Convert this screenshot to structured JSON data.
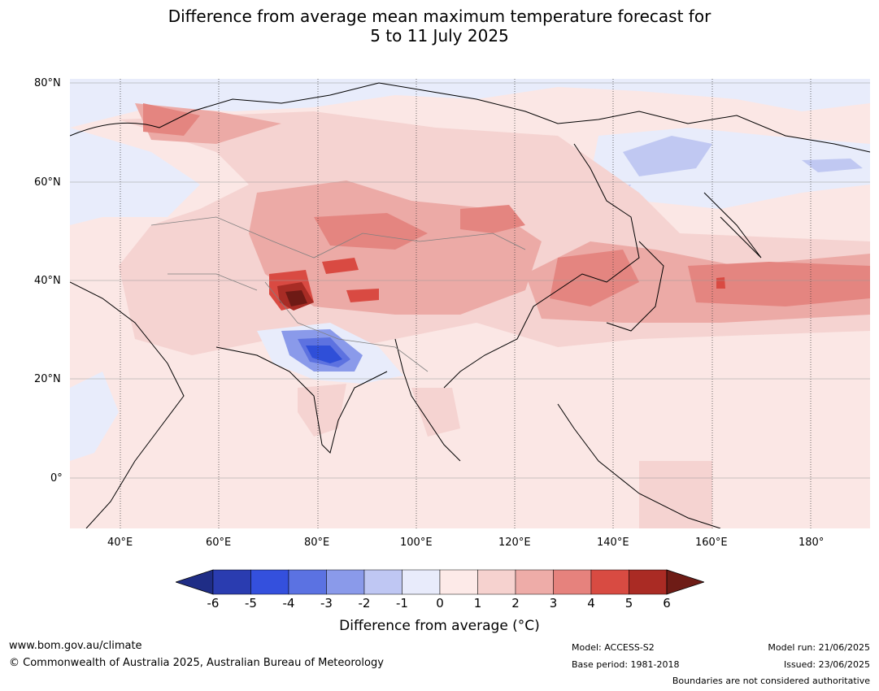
{
  "title": {
    "line1": "Difference from average mean maximum temperature forecast for",
    "line2": "5 to 11 July 2025"
  },
  "map": {
    "lat_labels": [
      "80°N",
      "60°N",
      "40°N",
      "20°N",
      "0°"
    ],
    "lon_labels": [
      "40°E",
      "60°E",
      "80°E",
      "100°E",
      "120°E",
      "140°E",
      "160°E",
      "180°"
    ],
    "region": "Asia",
    "colors": {
      "ocean_background": "#fbe7e5",
      "cool_light": "#e8ecfb",
      "cool_mid": "#c0c8f2",
      "cool_strong": "#5d72e0",
      "cool_core": "#2f4fd8",
      "warm_1": "#f5d3d1",
      "warm_2": "#ecaaa6",
      "warm_3": "#e48580",
      "warm_4": "#d94a42",
      "warm_5": "#a82c25",
      "warm_6": "#6e1a15"
    }
  },
  "colorbar": {
    "ticks": [
      "-6",
      "-5",
      "-4",
      "-3",
      "-2",
      "-1",
      "0",
      "1",
      "2",
      "3",
      "4",
      "5",
      "6"
    ],
    "colors": [
      "#1f2d86",
      "#2a3cb0",
      "#3450dd",
      "#5b72e2",
      "#8a9aea",
      "#bfc7f3",
      "#e8ebfb",
      "#fdeae8",
      "#f6d2cf",
      "#eeaca8",
      "#e6827d",
      "#d84b42",
      "#aa2b24",
      "#6e1c16"
    ],
    "label": "Difference from average (°C)"
  },
  "footer": {
    "website": "www.bom.gov.au/climate",
    "copyright": "© Commonwealth of Australia 2025, Australian Bureau of Meteorology",
    "model": "Model: ACCESS-S2",
    "base_period": "Base period: 1981-2018",
    "model_run": "Model run: 21/06/2025",
    "issued": "Issued: 23/06/2025",
    "disclaimer": "Boundaries are not considered authoritative"
  }
}
